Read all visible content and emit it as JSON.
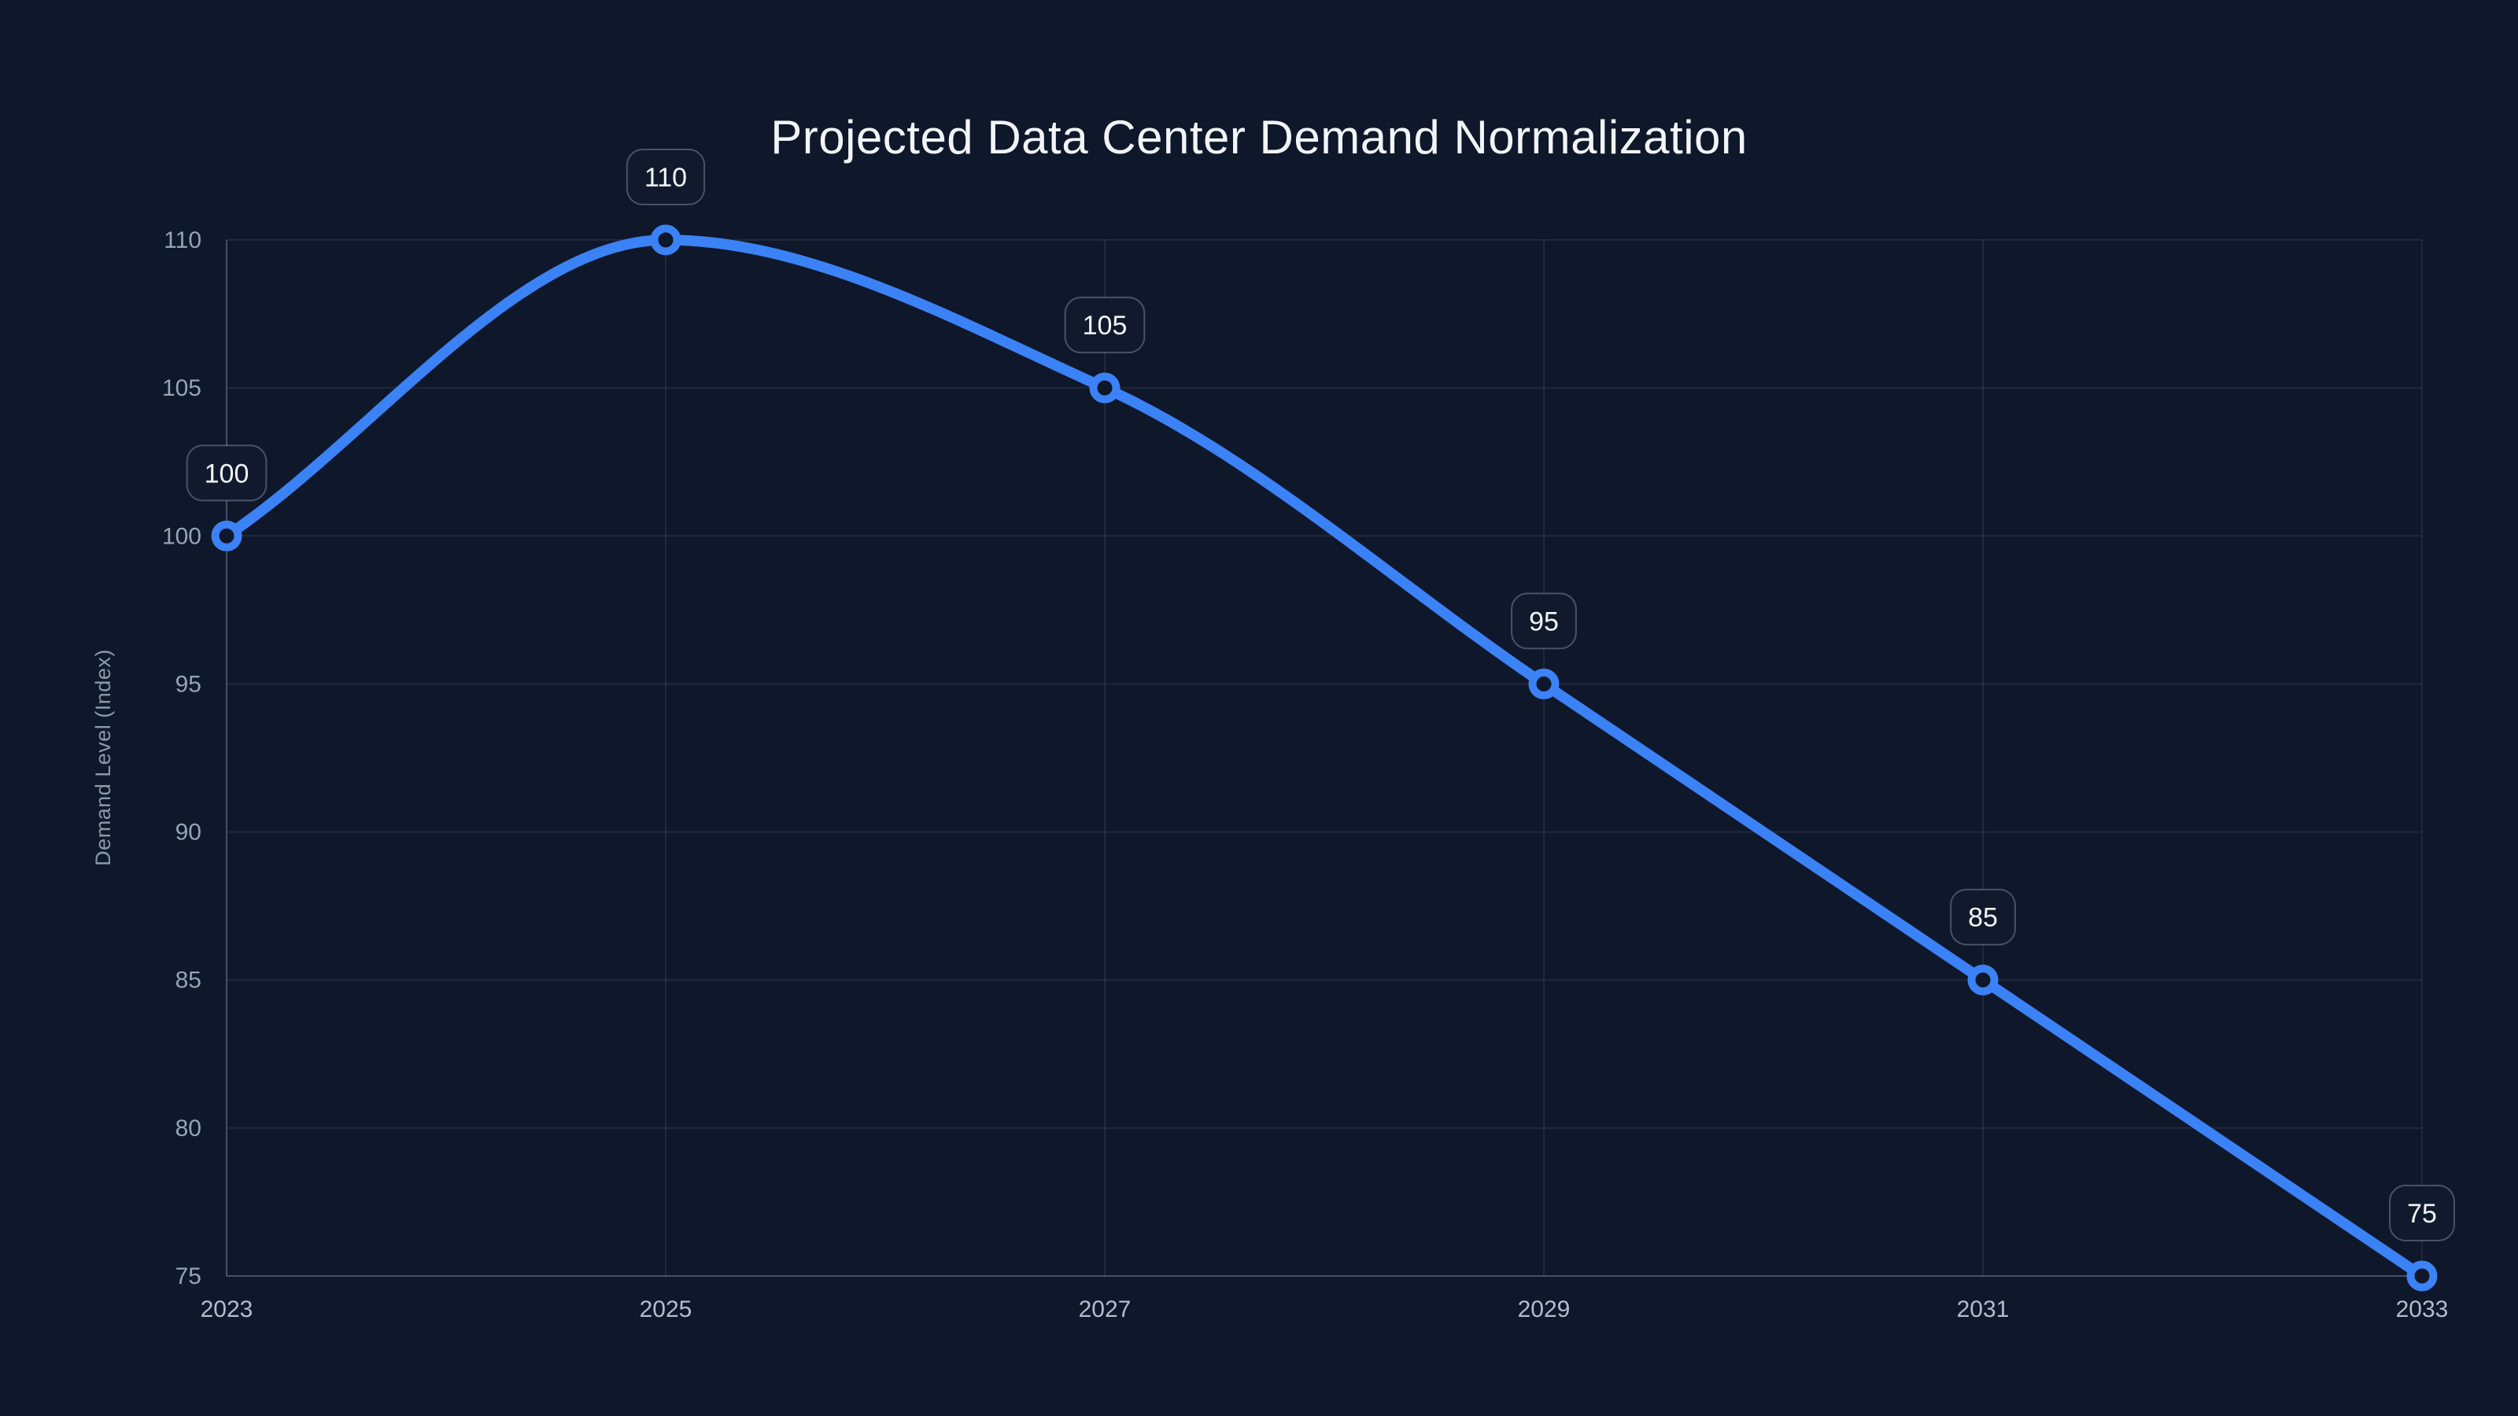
{
  "page": {
    "background_color": "#0f172a"
  },
  "chart_data": {
    "type": "line",
    "title": "Projected Data Center Demand Normalization",
    "xlabel": "",
    "ylabel": "Demand Level (Index)",
    "x": [
      2023,
      2025,
      2027,
      2029,
      2031,
      2033
    ],
    "series": [
      {
        "values": [
          100,
          110,
          105,
          95,
          85,
          75
        ]
      }
    ],
    "point_labels": [
      "100",
      "110",
      "105",
      "95",
      "85",
      "75"
    ],
    "x_tick_labels": [
      "2023",
      "2025",
      "2027",
      "2029",
      "2031",
      "2033"
    ],
    "y_tick_labels": [
      "75",
      "80",
      "85",
      "90",
      "95",
      "100",
      "105",
      "110"
    ],
    "y_ticks": [
      75,
      80,
      85,
      90,
      95,
      100,
      105,
      110
    ],
    "xlim": [
      2023,
      2033
    ],
    "ylim": [
      75,
      110
    ],
    "grid": true,
    "legend": false,
    "curve": "monotone",
    "colors": {
      "line": "#3b82f6",
      "marker_fill": "#0f172a",
      "grid": "rgba(148,163,184,0.13)",
      "axis": "rgba(148,163,184,0.32)",
      "y_tick_label": "#94a3b8",
      "x_tick_label": "#b3bdcc",
      "title": "#f1f5f9",
      "y_axis_title": "#8b98ad",
      "label_bubble_bg": "#111a2d",
      "label_bubble_border": "rgba(158,170,190,0.4)",
      "label_bubble_text": "#f3f6fa"
    }
  }
}
